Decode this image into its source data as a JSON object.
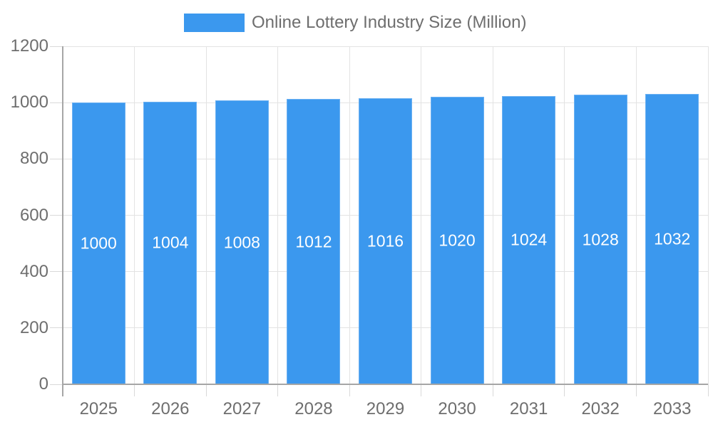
{
  "chart_data": {
    "type": "bar",
    "title": "",
    "legend_label": "Online Lottery Industry Size (Million)",
    "legend_position": "top",
    "categories": [
      "2025",
      "2026",
      "2027",
      "2028",
      "2029",
      "2030",
      "2031",
      "2032",
      "2033"
    ],
    "values": [
      1000,
      1004,
      1008,
      1012,
      1016,
      1020,
      1024,
      1028,
      1032
    ],
    "value_labels": [
      "1000",
      "1004",
      "1008",
      "1012",
      "1016",
      "1020",
      "1024",
      "1028",
      "1032"
    ],
    "xlabel": "",
    "ylabel": "",
    "ylim": [
      0,
      1200
    ],
    "yticks": [
      0,
      200,
      400,
      600,
      800,
      1000,
      1200
    ],
    "ytick_labels": [
      "0",
      "200",
      "400",
      "600",
      "800",
      "1000",
      "1200"
    ],
    "grid": true,
    "colors": {
      "bar": "#3b98ee",
      "bar_edge": "#6cb1f2",
      "value_label_text": "#ffffff",
      "axis_text": "#6e6e6e",
      "gridline": "#e3e3e3",
      "tick": "#d9d9d9",
      "axis_line": "#a6a6a6",
      "background": "#ffffff"
    }
  }
}
